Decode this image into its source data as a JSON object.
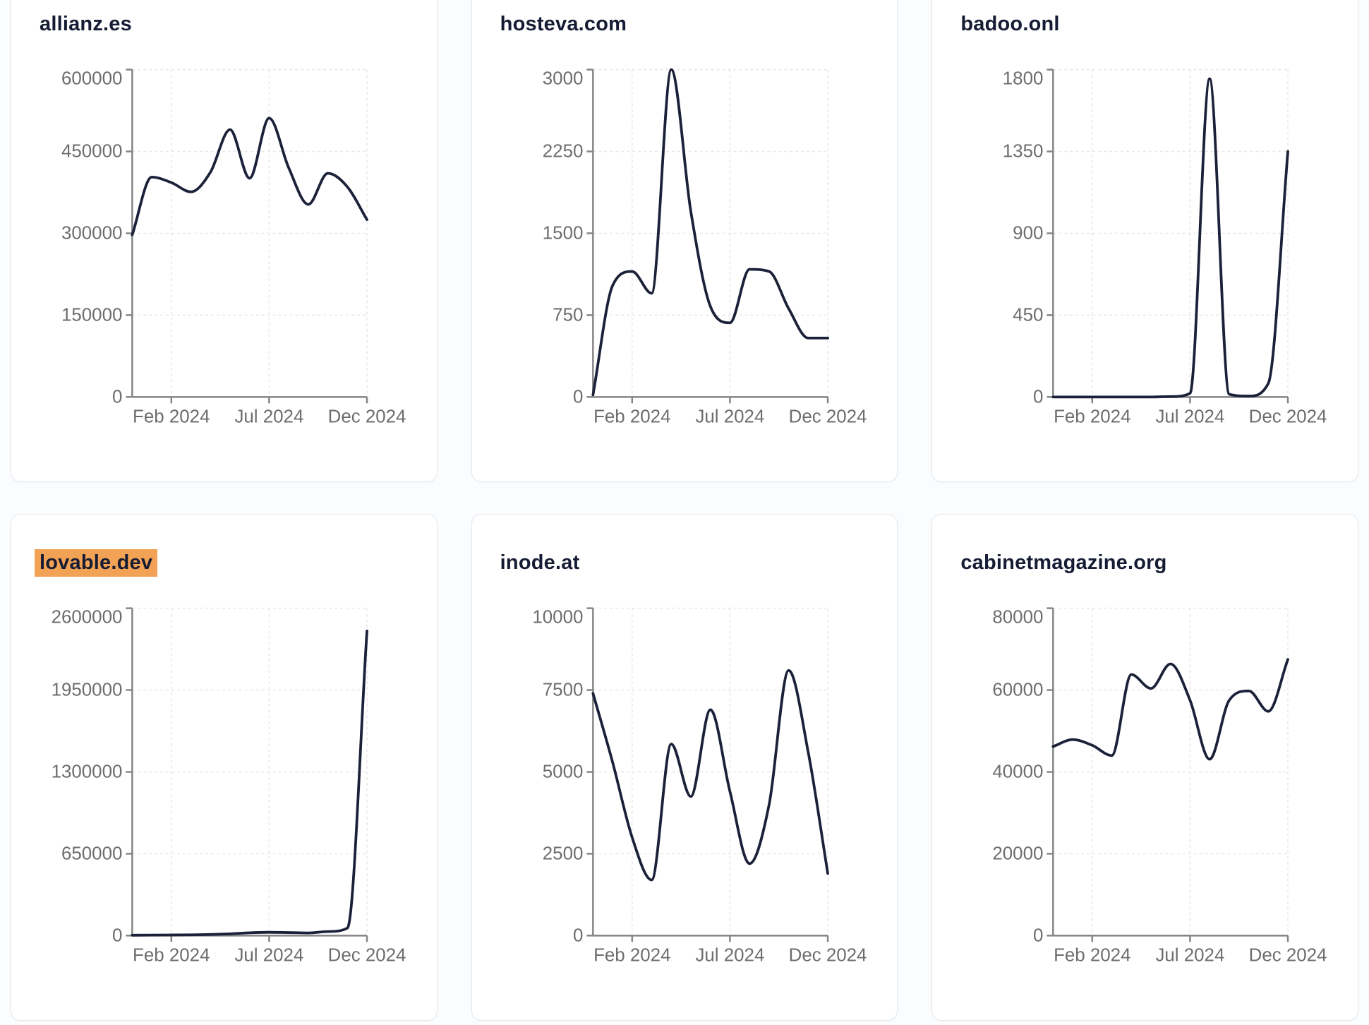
{
  "page": {
    "background_color": "#fbfcfd",
    "layout": "3x2-grid-of-line-chart-cards"
  },
  "theme": {
    "card_background": "#ffffff",
    "card_border_color": "#e4e9ef",
    "title_color": "#151c33",
    "line_color": "#1b2138",
    "axis_color": "#858585",
    "tick_label_color": "#6d6d6d",
    "grid_color": "#e7e7e7",
    "highlight_color": "#f2a254"
  },
  "chart_data": [
    {
      "type": "line",
      "title": "allianz.es",
      "highlighted": false,
      "x": [
        "Dec 2023",
        "Jan 2024",
        "Feb 2024",
        "Mar 2024",
        "Apr 2024",
        "May 2024",
        "Jun 2024",
        "Jul 2024",
        "Aug 2024",
        "Sep 2024",
        "Oct 2024",
        "Nov 2024",
        "Dec 2024"
      ],
      "values": [
        297000,
        403000,
        393000,
        376000,
        412000,
        490000,
        401000,
        511000,
        420000,
        353000,
        410000,
        385000,
        325000
      ],
      "y_ticks": [
        0,
        150000,
        300000,
        450000,
        600000
      ],
      "ylim": [
        0,
        600000
      ],
      "x_tick_labels": [
        "Feb 2024",
        "Jul 2024",
        "Dec 2024"
      ],
      "x_tick_indices": [
        2,
        7,
        12
      ],
      "grid": "dashed",
      "legend": "none"
    },
    {
      "type": "line",
      "title": "hosteva.com",
      "highlighted": false,
      "x": [
        "Dec 2023",
        "Jan 2024",
        "Feb 2024",
        "Mar 2024",
        "Apr 2024",
        "May 2024",
        "Jun 2024",
        "Jul 2024",
        "Aug 2024",
        "Sep 2024",
        "Oct 2024",
        "Nov 2024",
        "Dec 2024"
      ],
      "values": [
        20,
        1020,
        1150,
        950,
        3000,
        1700,
        830,
        680,
        1170,
        1150,
        810,
        540,
        540
      ],
      "y_ticks": [
        0,
        750,
        1500,
        2250,
        3000
      ],
      "ylim": [
        0,
        3000
      ],
      "x_tick_labels": [
        "Feb 2024",
        "Jul 2024",
        "Dec 2024"
      ],
      "x_tick_indices": [
        2,
        7,
        12
      ],
      "grid": "dashed",
      "legend": "none"
    },
    {
      "type": "line",
      "title": "badoo.onl",
      "highlighted": false,
      "x": [
        "Dec 2023",
        "Jan 2024",
        "Feb 2024",
        "Mar 2024",
        "Apr 2024",
        "May 2024",
        "Jun 2024",
        "Jul 2024",
        "Aug 2024",
        "Sep 2024",
        "Oct 2024",
        "Nov 2024",
        "Dec 2024"
      ],
      "values": [
        0,
        0,
        0,
        0,
        0,
        0,
        2,
        20,
        1750,
        15,
        5,
        75,
        1350
      ],
      "y_ticks": [
        0,
        450,
        900,
        1350,
        1800
      ],
      "ylim": [
        0,
        1800
      ],
      "x_tick_labels": [
        "Feb 2024",
        "Jul 2024",
        "Dec 2024"
      ],
      "x_tick_indices": [
        2,
        7,
        12
      ],
      "grid": "dashed",
      "legend": "none"
    },
    {
      "type": "line",
      "title": "lovable.dev",
      "highlighted": true,
      "x": [
        "Dec 2023",
        "Jan 2024",
        "Feb 2024",
        "Mar 2024",
        "Apr 2024",
        "May 2024",
        "Jun 2024",
        "Jul 2024",
        "Aug 2024",
        "Sep 2024",
        "Oct 2024",
        "Nov 2024",
        "Dec 2024"
      ],
      "values": [
        3000,
        4000,
        5000,
        6000,
        9000,
        14000,
        22000,
        26000,
        24000,
        21000,
        32000,
        60000,
        2420000
      ],
      "y_ticks": [
        0,
        650000,
        1300000,
        1950000,
        2600000
      ],
      "ylim": [
        0,
        2600000
      ],
      "x_tick_labels": [
        "Feb 2024",
        "Jul 2024",
        "Dec 2024"
      ],
      "x_tick_indices": [
        2,
        7,
        12
      ],
      "grid": "dashed",
      "legend": "none"
    },
    {
      "type": "line",
      "title": "inode.at",
      "highlighted": false,
      "x": [
        "Dec 2023",
        "Jan 2024",
        "Feb 2024",
        "Mar 2024",
        "Apr 2024",
        "May 2024",
        "Jun 2024",
        "Jul 2024",
        "Aug 2024",
        "Sep 2024",
        "Oct 2024",
        "Nov 2024",
        "Dec 2024"
      ],
      "values": [
        7400,
        5300,
        3000,
        1700,
        5850,
        4250,
        6900,
        4400,
        2200,
        4000,
        8100,
        5600,
        1900
      ],
      "y_ticks": [
        0,
        2500,
        5000,
        7500,
        10000
      ],
      "ylim": [
        0,
        10000
      ],
      "x_tick_labels": [
        "Feb 2024",
        "Jul 2024",
        "Dec 2024"
      ],
      "x_tick_indices": [
        2,
        7,
        12
      ],
      "grid": "dashed",
      "legend": "none"
    },
    {
      "type": "line",
      "title": "cabinetmagazine.org",
      "highlighted": false,
      "x": [
        "Dec 2023",
        "Jan 2024",
        "Feb 2024",
        "Mar 2024",
        "Apr 2024",
        "May 2024",
        "Jun 2024",
        "Jul 2024",
        "Aug 2024",
        "Sep 2024",
        "Oct 2024",
        "Nov 2024",
        "Dec 2024"
      ],
      "values": [
        46200,
        47900,
        46500,
        44000,
        63800,
        60400,
        66400,
        57500,
        43100,
        57500,
        59800,
        54800,
        67500
      ],
      "y_ticks": [
        0,
        20000,
        40000,
        60000,
        80000
      ],
      "ylim": [
        0,
        80000
      ],
      "x_tick_labels": [
        "Feb 2024",
        "Jul 2024",
        "Dec 2024"
      ],
      "x_tick_indices": [
        2,
        7,
        12
      ],
      "grid": "dashed",
      "legend": "none"
    }
  ]
}
